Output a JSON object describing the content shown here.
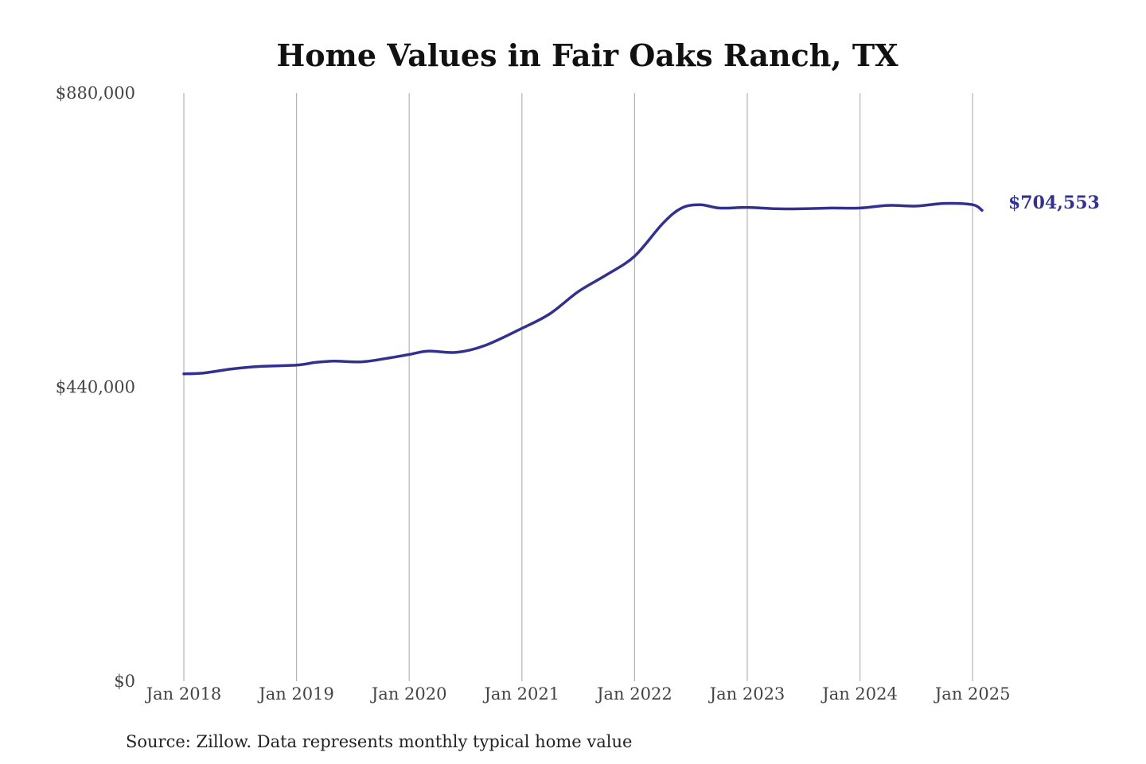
{
  "colors": {
    "series": "#33318f",
    "grid": "#b4b4b4",
    "text": "#444444",
    "title": "#111111"
  },
  "chart_data": {
    "type": "line",
    "title": "Home Values in Fair Oaks Ranch, TX",
    "xlabel": "",
    "ylabel": "",
    "ylim": [
      0,
      880000
    ],
    "y_ticks": [
      {
        "value": 0,
        "label": "$0"
      },
      {
        "value": 440000,
        "label": "$440,000"
      },
      {
        "value": 880000,
        "label": "$880,000"
      }
    ],
    "x_ticks": [
      {
        "value": "2018-01",
        "label": "Jan 2018"
      },
      {
        "value": "2019-01",
        "label": "Jan 2019"
      },
      {
        "value": "2020-01",
        "label": "Jan 2020"
      },
      {
        "value": "2021-01",
        "label": "Jan 2021"
      },
      {
        "value": "2022-01",
        "label": "Jan 2022"
      },
      {
        "value": "2023-01",
        "label": "Jan 2023"
      },
      {
        "value": "2024-01",
        "label": "Jan 2024"
      },
      {
        "value": "2025-01",
        "label": "Jan 2025"
      }
    ],
    "grid": "vertical",
    "end_label": "$704,553",
    "series": [
      {
        "points": [
          {
            "x": "2018-01",
            "y": 460000
          },
          {
            "x": "2018-03",
            "y": 461000
          },
          {
            "x": "2018-06",
            "y": 467000
          },
          {
            "x": "2018-09",
            "y": 471000
          },
          {
            "x": "2019-01",
            "y": 473000
          },
          {
            "x": "2019-03",
            "y": 477000
          },
          {
            "x": "2019-05",
            "y": 479000
          },
          {
            "x": "2019-08",
            "y": 478000
          },
          {
            "x": "2019-11",
            "y": 484000
          },
          {
            "x": "2020-01",
            "y": 489000
          },
          {
            "x": "2020-03",
            "y": 494000
          },
          {
            "x": "2020-06",
            "y": 492000
          },
          {
            "x": "2020-09",
            "y": 502000
          },
          {
            "x": "2021-01",
            "y": 528000
          },
          {
            "x": "2021-04",
            "y": 550000
          },
          {
            "x": "2021-07",
            "y": 583000
          },
          {
            "x": "2021-10",
            "y": 608000
          },
          {
            "x": "2022-01",
            "y": 636000
          },
          {
            "x": "2022-04",
            "y": 685000
          },
          {
            "x": "2022-06",
            "y": 708000
          },
          {
            "x": "2022-08",
            "y": 713000
          },
          {
            "x": "2022-10",
            "y": 708000
          },
          {
            "x": "2023-01",
            "y": 709000
          },
          {
            "x": "2023-04",
            "y": 707000
          },
          {
            "x": "2023-07",
            "y": 707000
          },
          {
            "x": "2023-10",
            "y": 708000
          },
          {
            "x": "2024-01",
            "y": 708000
          },
          {
            "x": "2024-04",
            "y": 712000
          },
          {
            "x": "2024-07",
            "y": 711000
          },
          {
            "x": "2024-10",
            "y": 715000
          },
          {
            "x": "2025-01",
            "y": 713000
          },
          {
            "x": "2025-02",
            "y": 704553
          }
        ]
      }
    ]
  },
  "source_note": "Source: Zillow. Data represents monthly typical home value"
}
